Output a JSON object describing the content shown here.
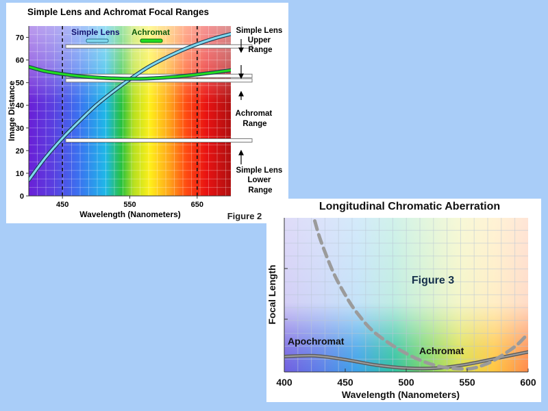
{
  "charts_meta": {
    "page_bg": "#a9cdf8",
    "panel_bg": "#ffffff"
  },
  "chart_data": [
    {
      "type": "line",
      "title": "Simple Lens and Achromat Focal Ranges",
      "figure_label": "Figure 2",
      "xlabel": "Wavelength (Nanometers)",
      "ylabel": "Image Distance",
      "xlim": [
        400,
        700
      ],
      "ylim": [
        0,
        75
      ],
      "xticks": [
        450,
        550,
        650
      ],
      "yticks": [
        0,
        10,
        20,
        30,
        40,
        50,
        60,
        70
      ],
      "grid": true,
      "legend_position": "top-center",
      "vertical_markers": [
        450,
        650
      ],
      "series": [
        {
          "name": "Simple Lens",
          "color": "#7fd8ee",
          "x": [
            400,
            425,
            450,
            475,
            500,
            525,
            550,
            575,
            600,
            625,
            650,
            675,
            700
          ],
          "y": [
            7,
            17,
            25.5,
            33,
            40,
            46,
            51.5,
            56.5,
            60.5,
            64,
            67,
            69.5,
            71.5
          ]
        },
        {
          "name": "Achromat",
          "color": "#22dd22",
          "x": [
            400,
            425,
            450,
            475,
            500,
            525,
            550,
            575,
            600,
            625,
            650,
            675,
            700
          ],
          "y": [
            57,
            55,
            53.8,
            52.9,
            52.3,
            51.9,
            51.7,
            51.8,
            52.2,
            52.8,
            53.6,
            54.5,
            55.5
          ]
        }
      ],
      "reference_bars": [
        66,
        53,
        51,
        24.5
      ],
      "annotations": [
        {
          "text": [
            "Simple Lens",
            "Upper",
            "Range"
          ]
        },
        {
          "text": [
            "Achromat",
            "Range"
          ]
        },
        {
          "text": [
            "Simple Lens",
            "Lower",
            "Range"
          ]
        }
      ]
    },
    {
      "type": "line",
      "title": "Longitudinal Chromatic Aberration",
      "figure_label": "Figure 3",
      "xlabel": "Wavelength (Nanometers)",
      "ylabel": "Focal Length",
      "xlim": [
        400,
        600
      ],
      "ylim": [
        0,
        100
      ],
      "xticks": [
        400,
        450,
        500,
        550,
        600
      ],
      "grid": true,
      "series": [
        {
          "name": "Apochromat",
          "style": "solid",
          "color": "#808080",
          "x": [
            400,
            425,
            450,
            475,
            500,
            525,
            550,
            575,
            600
          ],
          "y": [
            10,
            10.5,
            8,
            4.5,
            2.5,
            2.5,
            5,
            9,
            13
          ]
        },
        {
          "name": "Achromat",
          "style": "dashed",
          "color": "#a9a9a9",
          "x": [
            425,
            430,
            440,
            450,
            460,
            475,
            500,
            525,
            550,
            565,
            575,
            590,
            600
          ],
          "y": [
            98,
            85,
            65,
            50,
            38,
            25,
            12,
            4,
            2,
            5,
            9,
            17,
            25
          ]
        }
      ]
    }
  ]
}
